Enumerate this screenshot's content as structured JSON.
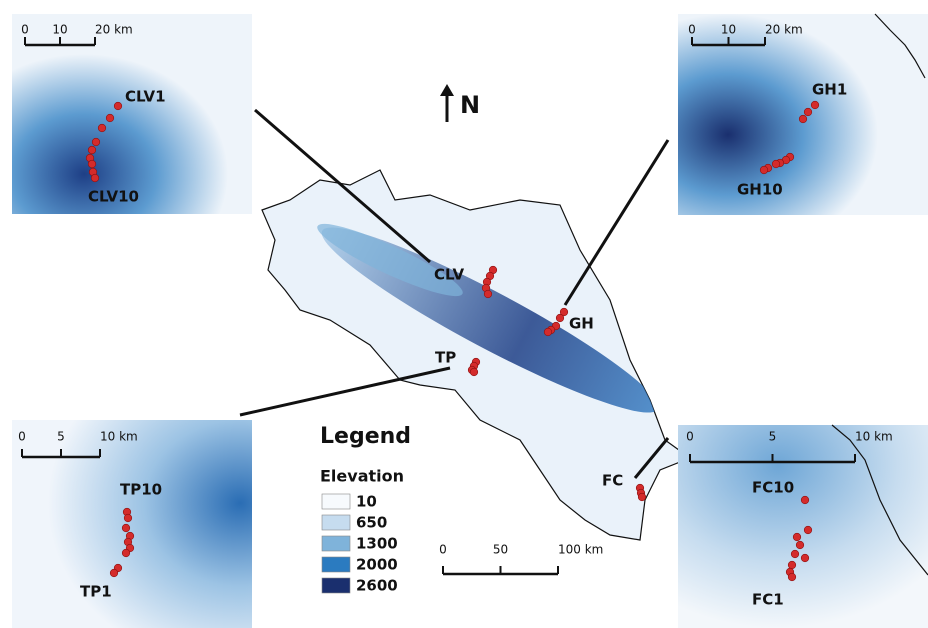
{
  "north": "N",
  "legend": {
    "title": "Legend",
    "subtitle": "Elevation",
    "items": [
      {
        "label": "10",
        "color": "#f7fafd"
      },
      {
        "label": "650",
        "color": "#c6dcef"
      },
      {
        "label": "1300",
        "color": "#7fb3da"
      },
      {
        "label": "2000",
        "color": "#2b7bc0"
      },
      {
        "label": "2600",
        "color": "#1a2f6e"
      }
    ]
  },
  "main_map": {
    "sites": [
      "CLV",
      "GH",
      "TP",
      "FC"
    ],
    "scale": [
      "0",
      "50",
      "100 km"
    ]
  },
  "insets": [
    {
      "scale": [
        "0",
        "10",
        "20 km"
      ],
      "labels": [
        "CLV1",
        "CLV10"
      ]
    },
    {
      "scale": [
        "0",
        "10",
        "20 km"
      ],
      "labels": [
        "GH1",
        "GH10"
      ]
    },
    {
      "scale": [
        "0",
        "5",
        "10 km"
      ],
      "labels": [
        "TP10",
        "TP1"
      ]
    },
    {
      "scale": [
        "0",
        "5",
        "10 km"
      ],
      "labels": [
        "FC10",
        "FC1"
      ]
    }
  ]
}
